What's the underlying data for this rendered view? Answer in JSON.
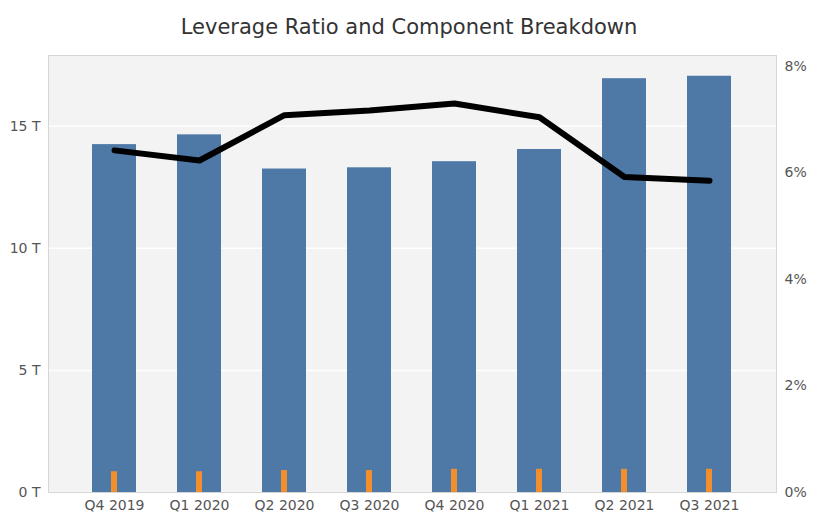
{
  "chart_data": {
    "type": "bar",
    "title": "Leverage Ratio and Component Breakdown",
    "categories": [
      "Q4 2019",
      "Q1 2020",
      "Q2 2020",
      "Q3 2020",
      "Q4 2020",
      "Q1 2021",
      "Q2 2021",
      "Q3 2021"
    ],
    "series": [
      {
        "type": "bar",
        "color": "#4e79a7",
        "values": [
          14.25,
          14.65,
          13.25,
          13.3,
          13.55,
          14.05,
          16.95,
          17.05
        ]
      },
      {
        "type": "bar",
        "color": "#f28e2b",
        "values": [
          0.85,
          0.85,
          0.9,
          0.9,
          0.95,
          0.95,
          0.95,
          0.95
        ]
      },
      {
        "type": "line",
        "color": "#000000",
        "axis": "y2",
        "values": [
          6.42,
          6.23,
          7.08,
          7.17,
          7.3,
          7.04,
          5.92,
          5.85
        ]
      }
    ],
    "ylim": [
      0,
      17.9
    ],
    "yticks": [
      {
        "value": 0,
        "label": "0 T"
      },
      {
        "value": 5,
        "label": "5 T"
      },
      {
        "value": 10,
        "label": "10 T"
      },
      {
        "value": 15,
        "label": "15 T"
      }
    ],
    "y2lim": [
      0,
      8.2
    ],
    "y2ticks": [
      {
        "value": 0,
        "label": "0%"
      },
      {
        "value": 2,
        "label": "2%"
      },
      {
        "value": 4,
        "label": "4%"
      },
      {
        "value": 6,
        "label": "6%"
      },
      {
        "value": 8,
        "label": "8%"
      }
    ],
    "grid": true
  }
}
